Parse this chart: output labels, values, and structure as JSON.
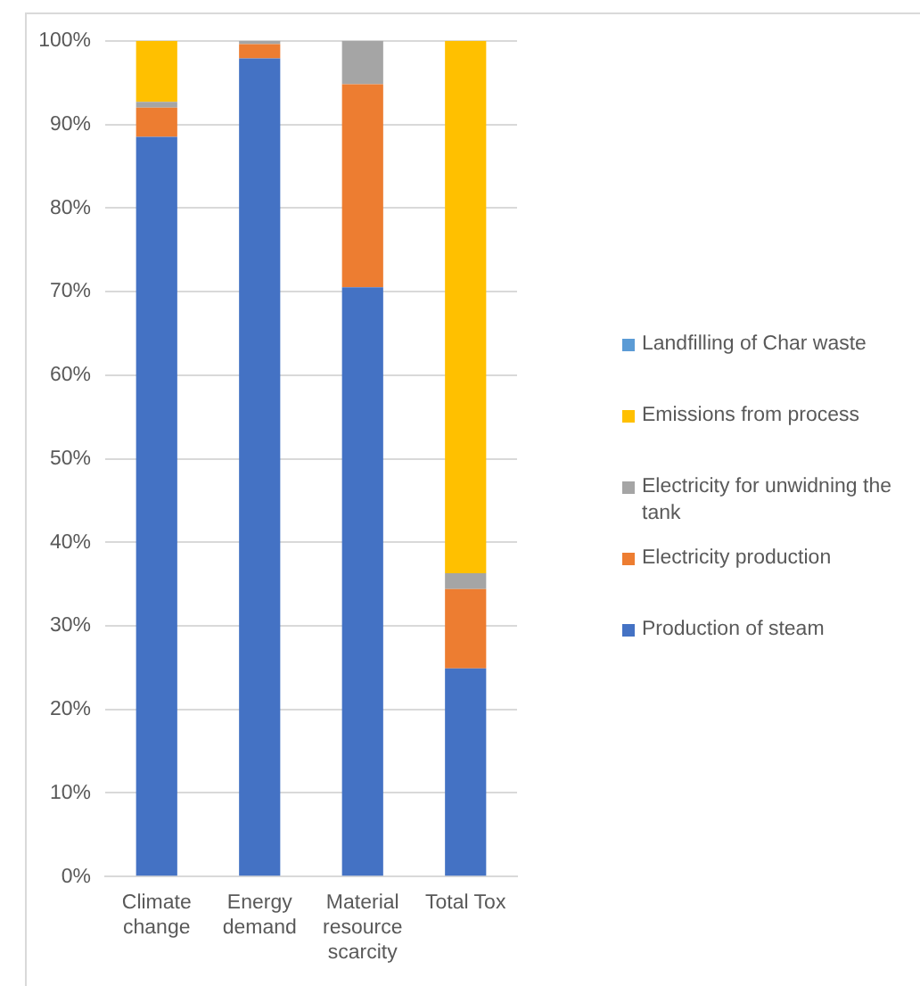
{
  "chart_data": {
    "type": "bar",
    "categories": [
      "Climate change",
      "Energy demand",
      "Material resource scarcity",
      "Total Tox"
    ],
    "series": [
      {
        "name": "Production of steam",
        "color": "#4472c4",
        "values": [
          88.5,
          97.9,
          70.5,
          24.9
        ]
      },
      {
        "name": "Electricity production",
        "color": "#ed7d31",
        "values": [
          3.5,
          1.7,
          24.3,
          9.5
        ]
      },
      {
        "name": "Electricity for unwidning the tank",
        "color": "#a5a5a5",
        "values": [
          0.7,
          0.4,
          5.2,
          1.9
        ]
      },
      {
        "name": "Emissions from process",
        "color": "#ffc000",
        "values": [
          7.3,
          0,
          0,
          63.7
        ]
      },
      {
        "name": "Landfilling of Char waste",
        "color": "#5b9bd5",
        "values": [
          0,
          0,
          0,
          0
        ]
      }
    ],
    "stacked": true,
    "ylim": [
      0,
      100
    ],
    "yticks": [
      {
        "value": 0,
        "label": "0%"
      },
      {
        "value": 10,
        "label": "10%"
      },
      {
        "value": 20,
        "label": "20%"
      },
      {
        "value": 30,
        "label": "30%"
      },
      {
        "value": 40,
        "label": "40%"
      },
      {
        "value": 50,
        "label": "50%"
      },
      {
        "value": 60,
        "label": "60%"
      },
      {
        "value": 70,
        "label": "70%"
      },
      {
        "value": 80,
        "label": "80%"
      },
      {
        "value": 90,
        "label": "90%"
      },
      {
        "value": 100,
        "label": "100%"
      }
    ],
    "grid": "y",
    "legend": "right"
  }
}
